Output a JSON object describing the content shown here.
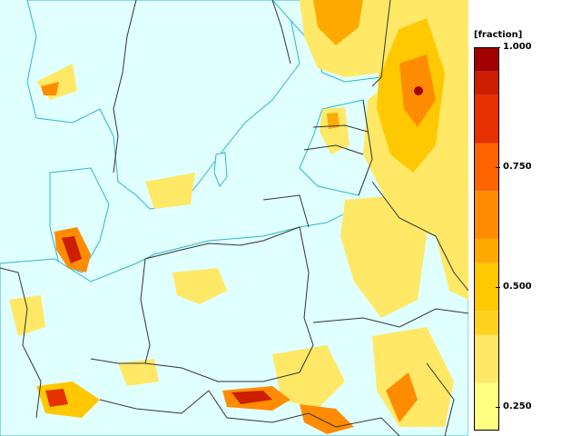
{
  "legend": {
    "title": "[fraction]",
    "ticks": [
      {
        "value": 1.0,
        "label": "1.000"
      },
      {
        "value": 0.75,
        "label": "0.750"
      },
      {
        "value": 0.5,
        "label": "0.500"
      },
      {
        "value": 0.25,
        "label": "0.250"
      }
    ],
    "bands": [
      {
        "from": 0.2,
        "to": 0.3,
        "color": "#ffff80"
      },
      {
        "from": 0.3,
        "to": 0.4,
        "color": "#ffe866"
      },
      {
        "from": 0.4,
        "to": 0.45,
        "color": "#ffd21e"
      },
      {
        "from": 0.45,
        "to": 0.55,
        "color": "#ffc800"
      },
      {
        "from": 0.55,
        "to": 0.6,
        "color": "#ffaa00"
      },
      {
        "from": 0.6,
        "to": 0.7,
        "color": "#ff8c00"
      },
      {
        "from": 0.7,
        "to": 0.8,
        "color": "#ff6400"
      },
      {
        "from": 0.8,
        "to": 0.9,
        "color": "#e63200"
      },
      {
        "from": 0.9,
        "to": 0.95,
        "color": "#cc1e00"
      },
      {
        "from": 0.95,
        "to": 1.0,
        "color": "#a00000"
      }
    ]
  },
  "colors": {
    "sea": "#e0ffff",
    "coast_outline": "#2fb5c5",
    "borders": "#333333"
  }
}
